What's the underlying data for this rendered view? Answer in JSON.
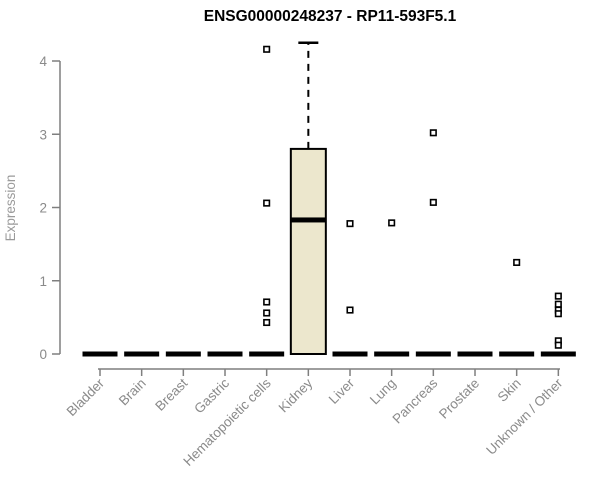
{
  "chart_data": {
    "type": "boxplot",
    "title": "ENSG00000248237 - RP11-593F5.1",
    "ylabel": "Expression",
    "xlabel": "",
    "ylim": [
      0,
      4.3
    ],
    "yticks": [
      0,
      1,
      2,
      3,
      4
    ],
    "grid": false,
    "legend": "none",
    "x_label_rotation_deg": -45,
    "box_fill_color": "#ECE7CD",
    "box_stroke_color": "#000000",
    "axis_color": "#7f7f7f",
    "tick_label_color": "#8a8a8a",
    "title_color": "#000000",
    "categories": [
      "Bladder",
      "Brain",
      "Breast",
      "Gastric",
      "Hematopoietic cells",
      "Kidney",
      "Liver",
      "Lung",
      "Pancreas",
      "Prostate",
      "Skin",
      "Unknown / Other"
    ],
    "boxes": [
      {
        "category": "Bladder",
        "low": 0,
        "q1": 0,
        "median": 0,
        "q3": 0,
        "high": 0,
        "outliers": []
      },
      {
        "category": "Brain",
        "low": 0,
        "q1": 0,
        "median": 0,
        "q3": 0,
        "high": 0,
        "outliers": []
      },
      {
        "category": "Breast",
        "low": 0,
        "q1": 0,
        "median": 0,
        "q3": 0,
        "high": 0,
        "outliers": []
      },
      {
        "category": "Gastric",
        "low": 0,
        "q1": 0,
        "median": 0,
        "q3": 0,
        "high": 0,
        "outliers": []
      },
      {
        "category": "Hematopoietic cells",
        "low": 0,
        "q1": 0,
        "median": 0,
        "q3": 0,
        "high": 0,
        "outliers": [
          4.16,
          2.06,
          0.71,
          0.56,
          0.43
        ]
      },
      {
        "category": "Kidney",
        "low": 0,
        "q1": 0,
        "median": 1.83,
        "q3": 2.8,
        "high": 4.25,
        "outliers": []
      },
      {
        "category": "Liver",
        "low": 0,
        "q1": 0,
        "median": 0,
        "q3": 0,
        "high": 0,
        "outliers": [
          1.78,
          0.6
        ]
      },
      {
        "category": "Lung",
        "low": 0,
        "q1": 0,
        "median": 0,
        "q3": 0,
        "high": 0,
        "outliers": [
          1.79
        ]
      },
      {
        "category": "Pancreas",
        "low": 0,
        "q1": 0,
        "median": 0,
        "q3": 0,
        "high": 0,
        "outliers": [
          3.02,
          2.07
        ]
      },
      {
        "category": "Prostate",
        "low": 0,
        "q1": 0,
        "median": 0,
        "q3": 0,
        "high": 0,
        "outliers": []
      },
      {
        "category": "Skin",
        "low": 0,
        "q1": 0,
        "median": 0,
        "q3": 0,
        "high": 0,
        "outliers": [
          1.25
        ]
      },
      {
        "category": "Unknown / Other",
        "low": 0,
        "q1": 0,
        "median": 0,
        "q3": 0,
        "high": 0,
        "outliers": [
          0.79,
          0.68,
          0.6,
          0.55,
          0.18,
          0.12
        ]
      }
    ]
  }
}
